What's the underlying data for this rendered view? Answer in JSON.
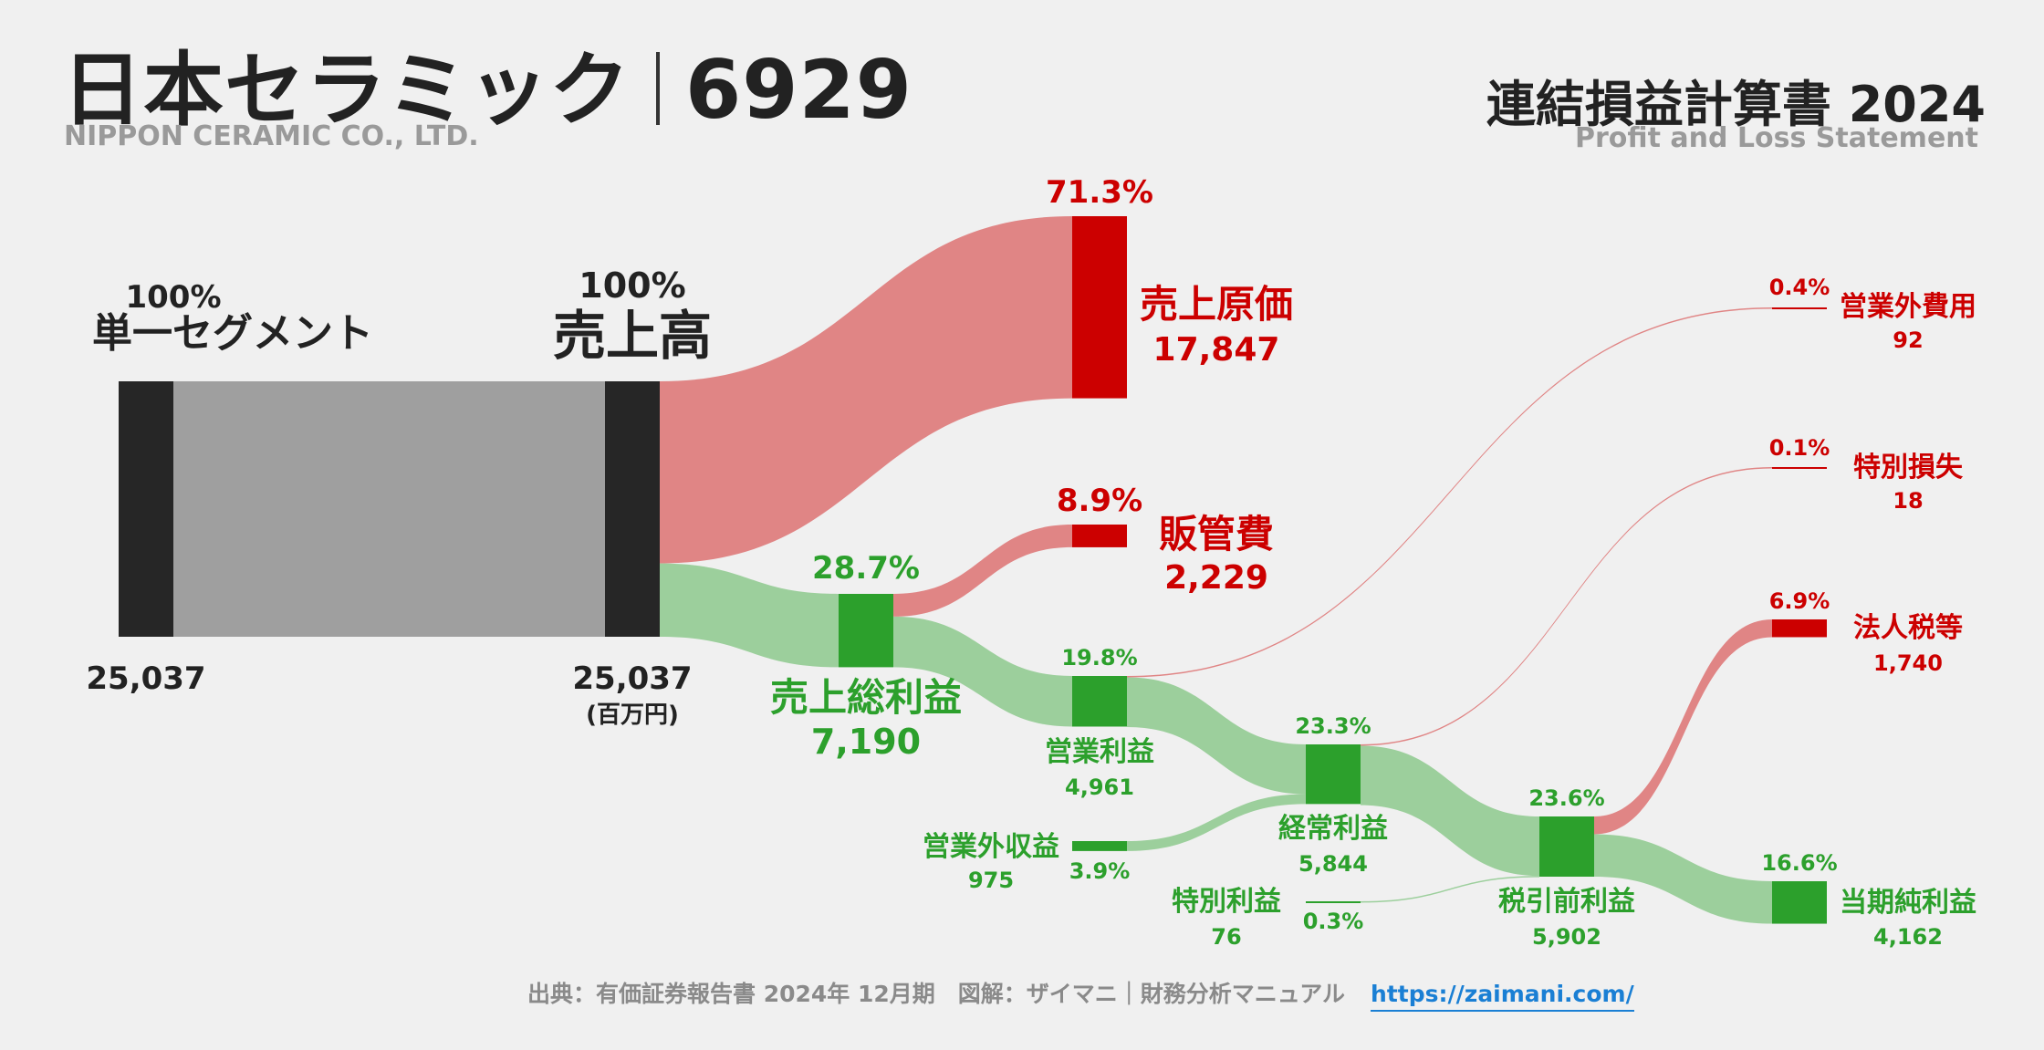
{
  "header": {
    "company_jp": "日本セラミック",
    "ticker": "6929",
    "company_en": "NIPPON CERAMIC CO., LTD.",
    "statement_jp": "連結損益計算書 2024",
    "statement_en": "Profit and Loss Statement"
  },
  "footer": {
    "source": "出典：有価証券報告書 2024年 12月期　図解：ザイマニ｜財務分析マニュアル",
    "url": "https://zaimani.com/"
  },
  "colors": {
    "dark_node": "#262626",
    "segment_flow": "#9f9f9f",
    "cost_node": "#cc0000",
    "cost_flow": "#e08585",
    "profit_node": "#2ca02c",
    "profit_flow": "#9ccf9c",
    "cost_text": "#cc0000",
    "profit_text": "#2ca02c"
  },
  "chart_data": {
    "type": "sankey",
    "unit": "(百万円)",
    "nodes": [
      {
        "id": "segment",
        "label": "単一セグメント",
        "value": 25037,
        "value_text": "25,037",
        "pct": "100%",
        "kind": "dark"
      },
      {
        "id": "sales",
        "label": "売上高",
        "value": 25037,
        "value_text": "25,037",
        "pct": "100%",
        "kind": "dark"
      },
      {
        "id": "cogs",
        "label": "売上原価",
        "value": 17847,
        "value_text": "17,847",
        "pct": "71.3%",
        "kind": "cost"
      },
      {
        "id": "gross",
        "label": "売上総利益",
        "value": 7190,
        "value_text": "7,190",
        "pct": "28.7%",
        "kind": "profit"
      },
      {
        "id": "sga",
        "label": "販管費",
        "value": 2229,
        "value_text": "2,229",
        "pct": "8.9%",
        "kind": "cost"
      },
      {
        "id": "op",
        "label": "営業利益",
        "value": 4961,
        "value_text": "4,961",
        "pct": "19.8%",
        "kind": "profit"
      },
      {
        "id": "nonop_inc",
        "label": "営業外収益",
        "value": 975,
        "value_text": "975",
        "pct": "3.9%",
        "kind": "profit"
      },
      {
        "id": "nonop_exp",
        "label": "営業外費用",
        "value": 92,
        "value_text": "92",
        "pct": "0.4%",
        "kind": "cost"
      },
      {
        "id": "ordinary",
        "label": "経常利益",
        "value": 5844,
        "value_text": "5,844",
        "pct": "23.3%",
        "kind": "profit"
      },
      {
        "id": "extra_inc",
        "label": "特別利益",
        "value": 76,
        "value_text": "76",
        "pct": "0.3%",
        "kind": "profit"
      },
      {
        "id": "extra_loss",
        "label": "特別損失",
        "value": 18,
        "value_text": "18",
        "pct": "0.1%",
        "kind": "cost"
      },
      {
        "id": "pretax",
        "label": "税引前利益",
        "value": 5902,
        "value_text": "5,902",
        "pct": "23.6%",
        "kind": "profit"
      },
      {
        "id": "tax",
        "label": "法人税等",
        "value": 1740,
        "value_text": "1,740",
        "pct": "6.9%",
        "kind": "cost"
      },
      {
        "id": "net",
        "label": "当期純利益",
        "value": 4162,
        "value_text": "4,162",
        "pct": "16.6%",
        "kind": "profit"
      }
    ],
    "links": [
      {
        "source": "segment",
        "target": "sales",
        "value": 25037
      },
      {
        "source": "sales",
        "target": "cogs",
        "value": 17847
      },
      {
        "source": "sales",
        "target": "gross",
        "value": 7190
      },
      {
        "source": "gross",
        "target": "sga",
        "value": 2229
      },
      {
        "source": "gross",
        "target": "op",
        "value": 4961
      },
      {
        "source": "op",
        "target": "nonop_exp",
        "value": 92
      },
      {
        "source": "op",
        "target": "ordinary",
        "value": 4869
      },
      {
        "source": "nonop_inc",
        "target": "ordinary",
        "value": 975
      },
      {
        "source": "ordinary",
        "target": "extra_loss",
        "value": 18
      },
      {
        "source": "ordinary",
        "target": "pretax",
        "value": 5826
      },
      {
        "source": "extra_inc",
        "target": "pretax",
        "value": 76
      },
      {
        "source": "pretax",
        "target": "tax",
        "value": 1740
      },
      {
        "source": "pretax",
        "target": "net",
        "value": 4162
      }
    ]
  }
}
